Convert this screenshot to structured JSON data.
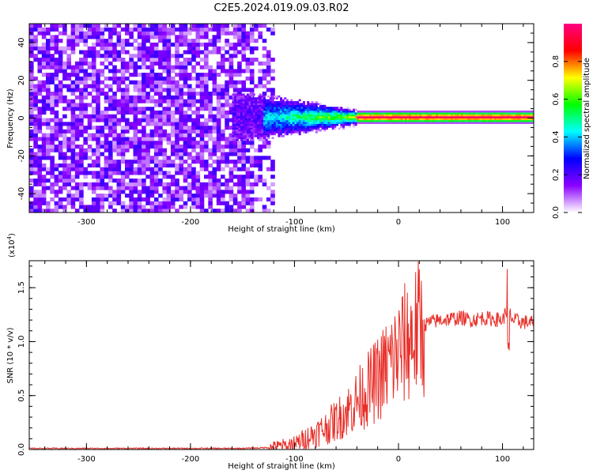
{
  "title": "C2E5.2024.019.09.03.R02",
  "chart_data": [
    {
      "type": "heatmap",
      "xlabel": "Height of straight line (km)",
      "ylabel": "Frequency (Hz)",
      "xlim": [
        -355,
        130
      ],
      "ylim": [
        -50,
        50
      ],
      "xticks": [
        -300,
        -200,
        -100,
        0,
        100
      ],
      "xtick_labels": [
        "-300",
        "-200",
        "-100",
        "0",
        "100"
      ],
      "yticks": [
        -40,
        -20,
        0,
        20,
        40
      ],
      "ytick_labels": [
        "-40",
        "-20",
        "0",
        "20",
        "40"
      ],
      "grid": false,
      "colorbar": {
        "label": "Normalized spectral amplitude",
        "range": [
          0.0,
          1.0
        ],
        "ticks": [
          0.0,
          0.2,
          0.4,
          0.6,
          0.8
        ],
        "tick_labels": [
          "0.0",
          "0.2",
          "0.4",
          "0.6",
          "0.8"
        ],
        "colors": [
          "#ffffff",
          "#8a00ff",
          "#0000ff",
          "#00ffff",
          "#00ff00",
          "#ffff00",
          "#ff0000",
          "#ff0080"
        ]
      },
      "regions": [
        {
          "x_from": -355,
          "x_to": -125,
          "freq_from": -50,
          "freq_to": 50,
          "amplitude": 0.1
        },
        {
          "x_from": -125,
          "x_to": -40,
          "freq_from": -10,
          "freq_to": 10,
          "amplitude": 0.5
        },
        {
          "x_from": -40,
          "x_to": 130,
          "freq_from": -2,
          "freq_to": 2,
          "amplitude": 0.9
        }
      ]
    },
    {
      "type": "line",
      "xlabel": "Height of straight line (km)",
      "ylabel": "SNR (10 * v/v)",
      "y_multiplier": "(x10",
      "y_multiplier_exp": "4",
      "xlim": [
        -355,
        130
      ],
      "ylim": [
        0,
        1.75
      ],
      "xticks": [
        -300,
        -200,
        -100,
        0,
        100
      ],
      "xtick_labels": [
        "-300",
        "-200",
        "-100",
        "0",
        "100"
      ],
      "yticks": [
        0,
        0.5,
        1.0,
        1.5
      ],
      "ytick_labels": [
        "0.0",
        "0.5",
        "1.0",
        "1.5"
      ],
      "grid": false,
      "series": [
        {
          "color": "#e8302a",
          "x": [
            -355,
            -300,
            -250,
            -200,
            -150,
            -120,
            -100,
            -90,
            -80,
            -70,
            -60,
            -50,
            -40,
            -30,
            -20,
            -10,
            0,
            10,
            20,
            30,
            40,
            50,
            60,
            70,
            80,
            90,
            100,
            105,
            110,
            120,
            130
          ],
          "y": [
            0.01,
            0.01,
            0.01,
            0.01,
            0.01,
            0.02,
            0.05,
            0.1,
            0.15,
            0.2,
            0.27,
            0.35,
            0.45,
            0.55,
            0.65,
            0.78,
            0.9,
            1.02,
            1.12,
            1.18,
            1.2,
            1.21,
            1.22,
            1.2,
            1.22,
            1.21,
            1.2,
            1.3,
            1.2,
            1.18,
            1.18
          ]
        }
      ]
    }
  ]
}
